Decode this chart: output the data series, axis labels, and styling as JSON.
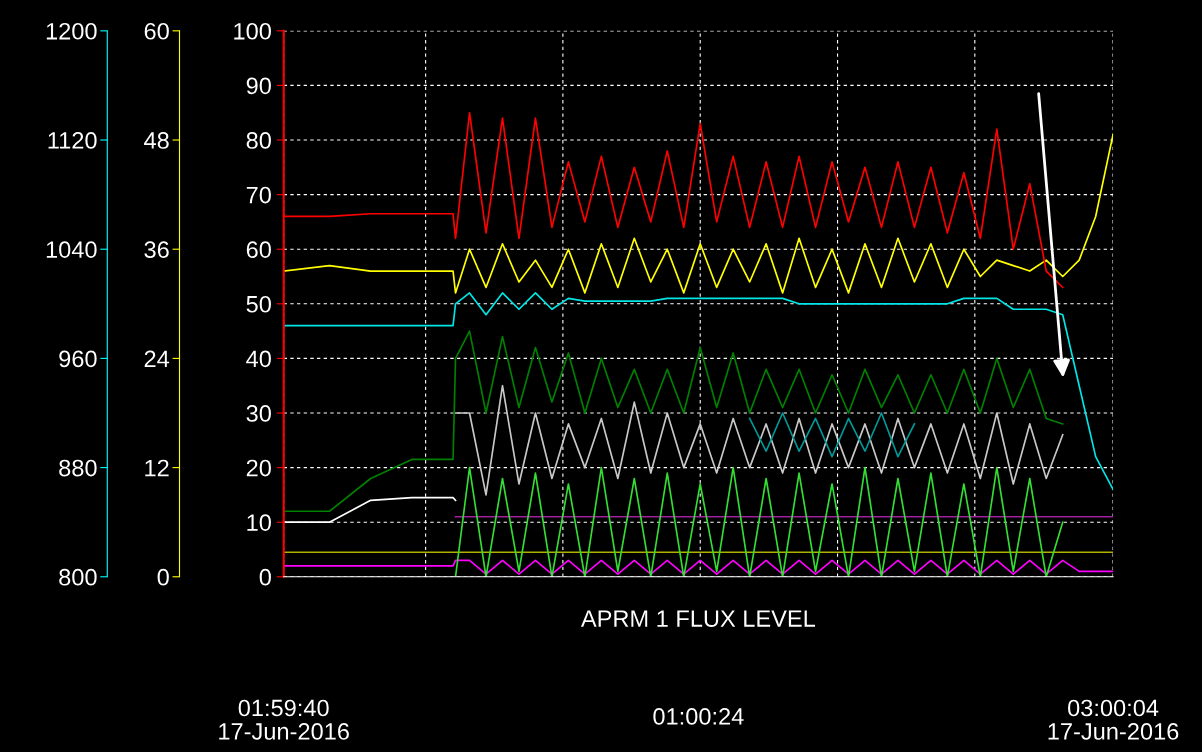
{
  "chart_data": {
    "type": "line",
    "xlabel": "APRM 1 FLUX LEVEL",
    "annotations": [
      "17-Jun-2016",
      "01:00:24",
      "17-Jun-2016"
    ],
    "x": [
      1.9944,
      2.05,
      2.1,
      2.15,
      2.2,
      2.203,
      2.22,
      2.24,
      2.26,
      2.28,
      2.3,
      2.32,
      2.34,
      2.36,
      2.38,
      2.4,
      2.42,
      2.44,
      2.46,
      2.48,
      2.5,
      2.52,
      2.54,
      2.56,
      2.58,
      2.6,
      2.62,
      2.64,
      2.66,
      2.68,
      2.7,
      2.72,
      2.74,
      2.76,
      2.78,
      2.8,
      2.82,
      2.84,
      2.86,
      2.88,
      2.9,
      2.92,
      2.94,
      2.96,
      2.98,
      3.0011
    ],
    "xlim": [
      1.9944,
      3.0011
    ],
    "xticks": [
      {
        "value": 1.9944,
        "label": "01:59:40"
      },
      {
        "value": 2.1667,
        "label": null
      },
      {
        "value": 2.3333,
        "label": null
      },
      {
        "value": 2.5,
        "label": null
      },
      {
        "value": 2.6667,
        "label": null
      },
      {
        "value": 2.8333,
        "label": null
      },
      {
        "value": 3.0011,
        "label": "03:00:04"
      }
    ],
    "ylim": [
      0,
      100
    ],
    "yticks": [
      0,
      10,
      20,
      30,
      40,
      50,
      60,
      70,
      80,
      90,
      100
    ],
    "y2lim": [
      0,
      60
    ],
    "y2ticks": [
      0,
      12,
      24,
      36,
      48,
      60
    ],
    "y3lim": [
      800,
      1200
    ],
    "y3ticks": [
      800,
      880,
      960,
      1040,
      1120,
      1200
    ],
    "grid": true,
    "legend": false,
    "series": [
      {
        "color": "#b0b000",
        "values": [
          4.5,
          4.5,
          4.5,
          4.5,
          4.5,
          4.5,
          4.5,
          4.5,
          4.5,
          4.5,
          4.5,
          4.5,
          4.5,
          4.5,
          4.5,
          4.5,
          4.5,
          4.5,
          4.5,
          4.5,
          4.5,
          4.5,
          4.5,
          4.5,
          4.5,
          4.5,
          4.5,
          4.5,
          4.5,
          4.5,
          4.5,
          4.5,
          4.5,
          4.5,
          4.5,
          4.5,
          4.5,
          4.5,
          4.5,
          4.5,
          4.5,
          4.5,
          4.5,
          4.5,
          4.5,
          4.5
        ]
      },
      {
        "color": "#a020a0",
        "values": [
          null,
          null,
          null,
          null,
          null,
          11,
          11,
          11,
          11,
          11,
          11,
          11,
          11,
          11,
          11,
          11,
          11,
          11,
          11,
          11,
          11,
          11,
          11,
          11,
          11,
          11,
          11,
          11,
          11,
          11,
          11,
          11,
          11,
          11,
          11,
          11,
          11,
          11,
          11,
          11,
          11,
          11,
          11,
          11,
          11,
          11
        ]
      },
      {
        "color": "#ff00ff",
        "values": [
          2,
          2,
          2,
          2,
          2,
          3,
          3,
          0.5,
          3,
          0.5,
          3,
          0.5,
          3,
          0.5,
          3,
          0.5,
          3,
          0.5,
          3,
          0.5,
          3,
          0.5,
          3,
          0.5,
          3,
          0.5,
          3,
          0.5,
          3,
          0.5,
          3,
          0.5,
          3,
          0.5,
          3,
          0.5,
          3,
          0.5,
          3,
          0.5,
          3,
          0.5,
          3,
          1,
          1,
          1
        ]
      },
      {
        "color": "#33dd33",
        "values": [
          null,
          null,
          null,
          null,
          null,
          0,
          20,
          0,
          18,
          1,
          19,
          0,
          17,
          0,
          20,
          1,
          18,
          0,
          19,
          0,
          17,
          1,
          20,
          0,
          18,
          0,
          19,
          1,
          17,
          0,
          20,
          0,
          18,
          1,
          19,
          0,
          17,
          0,
          20,
          1,
          18,
          0,
          10,
          null,
          null,
          null
        ]
      },
      {
        "color": "#c8c8c8",
        "values": [
          null,
          null,
          null,
          null,
          null,
          30,
          30,
          15,
          35,
          17,
          30,
          18,
          28,
          20,
          29,
          18,
          32,
          19,
          30,
          20,
          28,
          19,
          29,
          20,
          28,
          19,
          29,
          19,
          28,
          20,
          28,
          19,
          29,
          20,
          28,
          19,
          28,
          18,
          30,
          17,
          28,
          18,
          26,
          null,
          null,
          null
        ]
      },
      {
        "color": "#009999",
        "values": [
          null,
          null,
          null,
          null,
          null,
          null,
          null,
          null,
          null,
          null,
          null,
          null,
          null,
          null,
          null,
          null,
          null,
          null,
          null,
          null,
          null,
          null,
          null,
          29,
          23,
          30,
          23,
          29,
          22,
          29,
          23,
          30,
          22,
          28,
          null,
          null,
          null,
          null,
          null,
          null,
          null,
          null,
          null,
          null,
          null,
          null
        ]
      },
      {
        "color": "#ffffff",
        "values": [
          10,
          10,
          14,
          14.5,
          14.5,
          14,
          null,
          null,
          null,
          null,
          null,
          null,
          null,
          null,
          null,
          null,
          null,
          null,
          null,
          null,
          null,
          null,
          null,
          null,
          null,
          null,
          null,
          null,
          null,
          null,
          null,
          null,
          null,
          null,
          null,
          null,
          null,
          null,
          null,
          null,
          null,
          null,
          null,
          null,
          null,
          null
        ]
      },
      {
        "color": "#008000",
        "values": [
          12,
          12,
          18,
          21.5,
          21.5,
          40,
          45,
          30,
          44,
          31,
          42,
          32,
          41,
          30,
          40,
          31,
          38,
          30,
          38,
          30,
          42,
          31,
          41,
          30,
          38,
          31,
          38,
          30,
          37,
          30,
          38,
          31,
          37,
          30,
          37,
          30,
          38,
          30,
          40,
          31,
          38,
          29,
          28,
          null,
          null,
          null
        ]
      },
      {
        "color": "#00e5e5",
        "values": [
          46,
          46,
          46,
          46,
          46,
          50,
          52,
          48,
          52,
          49,
          52,
          49,
          51,
          50.5,
          50.5,
          50.5,
          50.5,
          50.5,
          51,
          51,
          51,
          51,
          51,
          51,
          51,
          51,
          50,
          50,
          50,
          50,
          50,
          50,
          50,
          50,
          50,
          50,
          51,
          51,
          51,
          49,
          49,
          49,
          48,
          35,
          22,
          16
        ]
      },
      {
        "color": "#ffff00",
        "values": [
          56,
          57,
          56,
          56,
          56,
          52,
          60,
          53,
          61,
          54,
          58,
          53,
          60,
          52,
          61,
          53,
          62,
          54,
          60,
          52,
          61,
          53,
          60,
          54,
          61,
          52,
          62,
          53,
          60,
          52,
          61,
          53,
          62,
          54,
          61,
          53,
          60,
          55,
          58,
          57,
          56,
          58,
          55,
          58,
          66,
          81
        ]
      },
      {
        "color": "#ff0000",
        "values": [
          66,
          66,
          66.5,
          66.5,
          66.5,
          62,
          85,
          63,
          84,
          62,
          84,
          64,
          76,
          65,
          77,
          64,
          75,
          65,
          78,
          64,
          83,
          65,
          77,
          64,
          76,
          64,
          77,
          64,
          76,
          65,
          75,
          64,
          76,
          64,
          75,
          63,
          74,
          62,
          82,
          60,
          72,
          56,
          53,
          null,
          null,
          null
        ]
      }
    ]
  }
}
